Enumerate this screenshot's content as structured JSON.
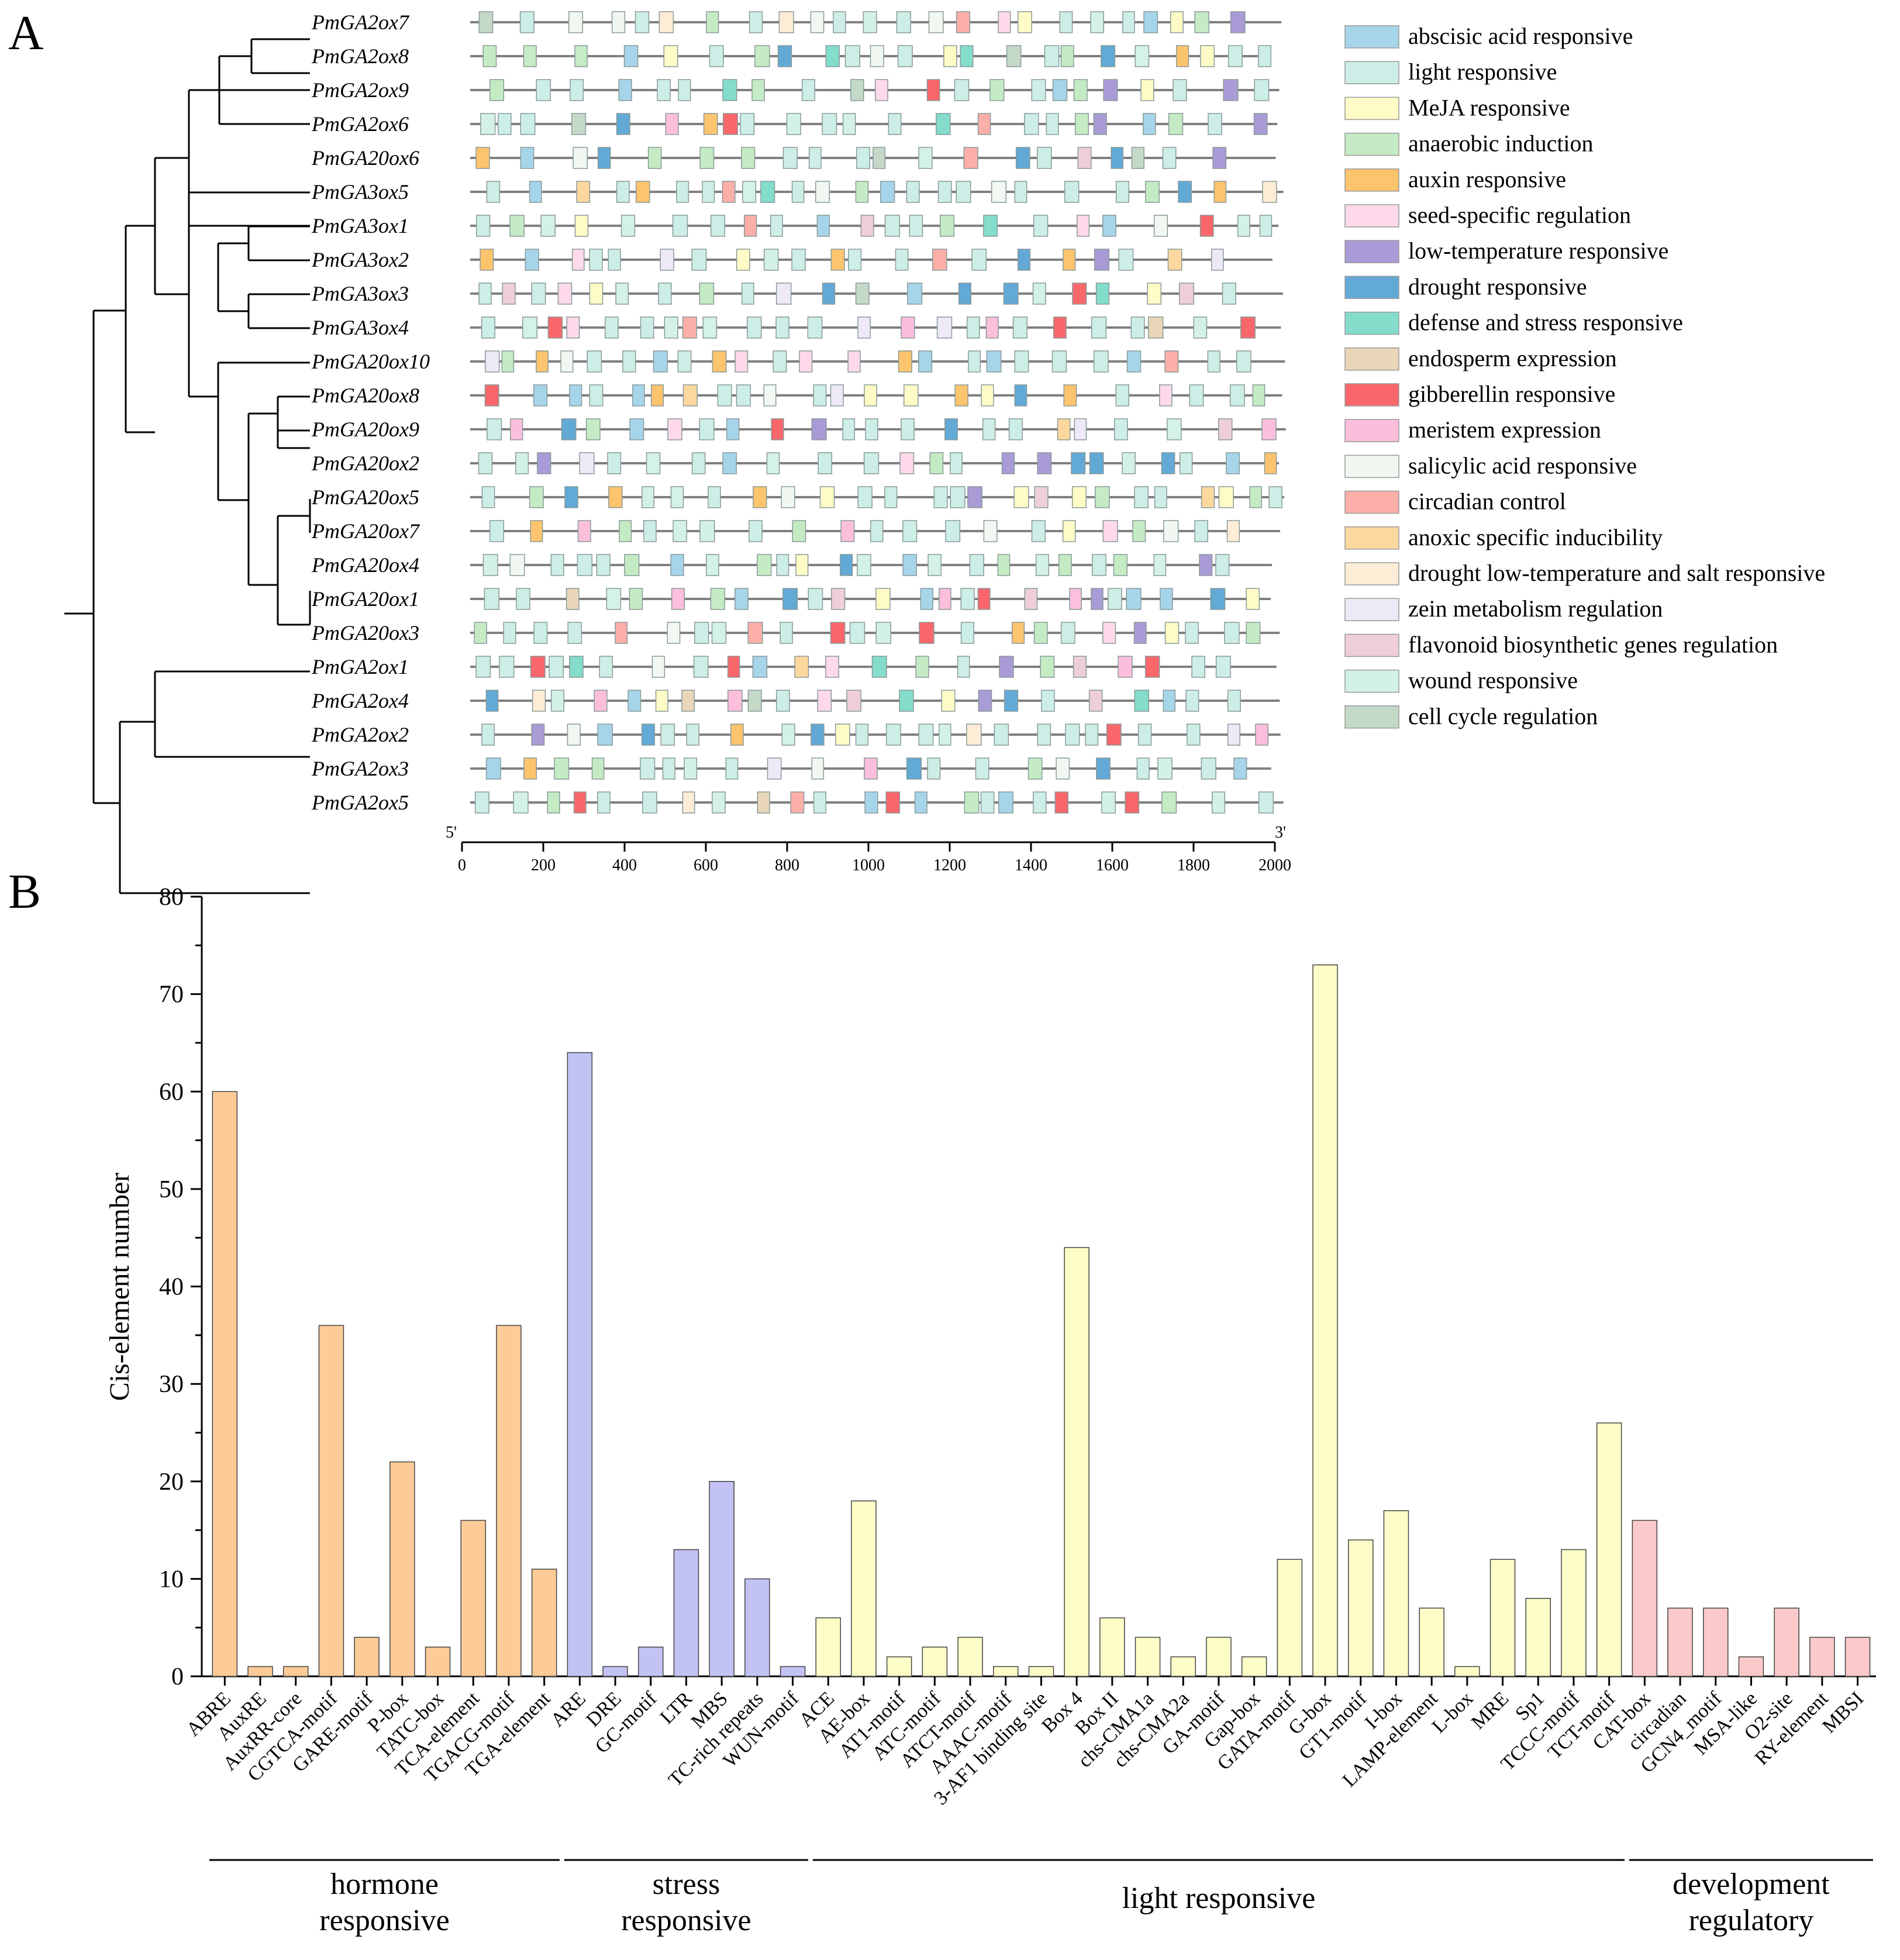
{
  "panels": {
    "a": "A",
    "b": "B"
  },
  "panel_a": {
    "genes": [
      "PmGA2ox7",
      "PmGA2ox8",
      "PmGA2ox9",
      "PmGA2ox6",
      "PmGA20ox6",
      "PmGA3ox5",
      "PmGA3ox1",
      "PmGA3ox2",
      "PmGA3ox3",
      "PmGA3ox4",
      "PmGA20ox10",
      "PmGA20ox8",
      "PmGA20ox9",
      "PmGA20ox2",
      "PmGA20ox5",
      "PmGA20ox7",
      "PmGA20ox4",
      "PmGA20ox1",
      "PmGA20ox3",
      "PmGA2ox1",
      "PmGA2ox4",
      "PmGA2ox2",
      "PmGA2ox3",
      "PmGA2ox5"
    ],
    "axis": {
      "label_5": "5'",
      "label_3": "3'",
      "min": 0,
      "max": 2000,
      "ticks": [
        0,
        200,
        400,
        600,
        800,
        1000,
        1200,
        1400,
        1600,
        1800,
        2000
      ]
    },
    "legend": [
      {
        "label": "abscisic acid responsive",
        "color": "#a6d5ea"
      },
      {
        "label": "light responsive",
        "color": "#cdeee6"
      },
      {
        "label": "MeJA responsive",
        "color": "#fefbc6"
      },
      {
        "label": "anaerobic induction",
        "color": "#c5ebc4"
      },
      {
        "label": "auxin responsive",
        "color": "#fdc46e"
      },
      {
        "label": "seed-specific regulation",
        "color": "#fdd9ea"
      },
      {
        "label": "low-temperature responsive",
        "color": "#a99bd5"
      },
      {
        "label": "drought responsive",
        "color": "#62a9d6"
      },
      {
        "label": "defense and stress responsive",
        "color": "#84dccb"
      },
      {
        "label": "endosperm expression",
        "color": "#e9d6b8"
      },
      {
        "label": "gibberellin responsive",
        "color": "#f9676b"
      },
      {
        "label": "meristem expression",
        "color": "#fbbfdc"
      },
      {
        "label": "salicylic acid responsive",
        "color": "#f1f8f2"
      },
      {
        "label": "circadian control",
        "color": "#fbafa8"
      },
      {
        "label": "anoxic specific inducibility",
        "color": "#fdd89e"
      },
      {
        "label": "drought  low-temperature and salt responsive",
        "color": "#fdecd6"
      },
      {
        "label": "zein metabolism regulation",
        "color": "#ede9f7"
      },
      {
        "label": "flavonoid biosynthetic genes regulation",
        "color": "#eecfd9"
      },
      {
        "label": "wound responsive",
        "color": "#d4f1e7"
      },
      {
        "label": "cell cycle regulation",
        "color": "#c4d9c8"
      }
    ]
  },
  "chart_data": {
    "type": "bar",
    "ylabel": "Cis-element number",
    "ylim": [
      0,
      80
    ],
    "yticks": [
      0,
      10,
      20,
      30,
      40,
      50,
      60,
      70,
      80
    ],
    "categories": [
      "ABRE",
      "AuxRE",
      "AuxRR-core",
      "CGTCA-motif",
      "GARE-motif",
      "P-box",
      "TATC-box",
      "TCA-element",
      "TGACG-motif",
      "TGA-element",
      "ARE",
      "DRE",
      "GC-motif",
      "LTR",
      "MBS",
      "TC-rich repeats",
      "WUN-motif",
      "ACE",
      "AE-box",
      "AT1-motif",
      "ATC-motif",
      "ATCT-motif",
      "AAAC-motif",
      "3-AF1 binding site",
      "Box 4",
      "Box II",
      "chs-CMA1a",
      "chs-CMA2a",
      "GA-motif",
      "Gap-box",
      "GATA-motif",
      "G-box",
      "GT1-motif",
      "I-box",
      "LAMP-element",
      "L-box",
      "MRE",
      "Sp1",
      "TCCC-motif",
      "TCT-motif",
      "CAT-box",
      "circadian",
      "GCN4_motif",
      "MSA-like",
      "O2-site",
      "RY-element",
      "MBSI"
    ],
    "values": [
      60,
      1,
      1,
      36,
      4,
      22,
      3,
      16,
      36,
      11,
      64,
      1,
      3,
      13,
      20,
      10,
      1,
      6,
      18,
      2,
      3,
      4,
      1,
      1,
      44,
      6,
      4,
      2,
      4,
      2,
      12,
      73,
      14,
      17,
      7,
      1,
      12,
      8,
      13,
      26,
      16,
      7,
      7,
      2,
      7,
      4,
      4
    ],
    "groups": [
      {
        "name_line1": "hormone",
        "name_line2": "responsive",
        "start": 0,
        "end": 9,
        "color": "#fdcb97"
      },
      {
        "name_line1": "stress",
        "name_line2": "responsive",
        "start": 10,
        "end": 16,
        "color": "#c3c2f4"
      },
      {
        "name_line1": "light responsive",
        "name_line2": "",
        "start": 17,
        "end": 39,
        "color": "#fdfdc8"
      },
      {
        "name_line1": "development",
        "name_line2": "regulatory",
        "start": 40,
        "end": 46,
        "color": "#fbc9c9"
      }
    ]
  }
}
